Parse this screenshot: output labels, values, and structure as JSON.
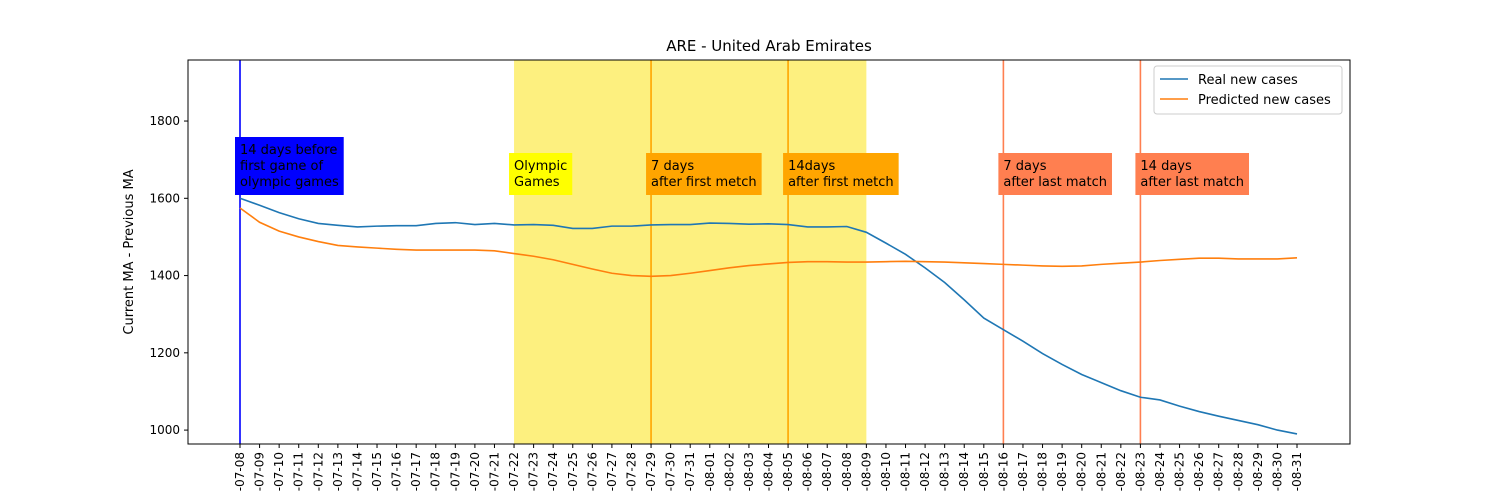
{
  "chart_data": {
    "type": "line",
    "title": "ARE - United Arab Emirates",
    "ylabel": "Current MA - Previous MA",
    "categories": [
      "-07-08",
      "-07-09",
      "-07-10",
      "-07-11",
      "-07-12",
      "-07-13",
      "-07-14",
      "-07-15",
      "-07-16",
      "-07-17",
      "-07-18",
      "-07-19",
      "-07-20",
      "-07-21",
      "-07-22",
      "-07-23",
      "-07-24",
      "-07-25",
      "-07-26",
      "-07-27",
      "-07-28",
      "-07-29",
      "-07-30",
      "-07-31",
      "-08-01",
      "-08-02",
      "-08-03",
      "-08-04",
      "-08-05",
      "-08-06",
      "-08-07",
      "-08-08",
      "-08-09",
      "-08-10",
      "-08-11",
      "-08-12",
      "-08-13",
      "-08-14",
      "-08-15",
      "-08-16",
      "-08-17",
      "-08-18",
      "-08-19",
      "-08-20",
      "-08-21",
      "-08-22",
      "-08-23",
      "-08-24",
      "-08-25",
      "-08-26",
      "-08-27",
      "-08-28",
      "-08-29",
      "-08-30",
      "-08-31"
    ],
    "series": [
      {
        "name": "Real new cases",
        "color": "#1f77b4",
        "values": [
          1600,
          1582,
          1563,
          1547,
          1535,
          1530,
          1526,
          1528,
          1529,
          1529,
          1535,
          1537,
          1532,
          1535,
          1531,
          1532,
          1530,
          1522,
          1522,
          1528,
          1528,
          1531,
          1532,
          1532,
          1536,
          1535,
          1533,
          1534,
          1532,
          1526,
          1526,
          1527,
          1512,
          1484,
          1455,
          1420,
          1382,
          1337,
          1290,
          1260,
          1230,
          1198,
          1170,
          1144,
          1123,
          1102,
          1085,
          1078,
          1062,
          1048,
          1036,
          1025,
          1014,
          1000,
          990
        ]
      },
      {
        "name": "Predicted new cases",
        "color": "#ff7f0e",
        "values": [
          1575,
          1538,
          1515,
          1500,
          1488,
          1478,
          1474,
          1471,
          1468,
          1466,
          1466,
          1466,
          1466,
          1464,
          1457,
          1450,
          1441,
          1429,
          1417,
          1406,
          1400,
          1398,
          1400,
          1406,
          1413,
          1420,
          1426,
          1430,
          1434,
          1436,
          1436,
          1435,
          1435,
          1436,
          1437,
          1436,
          1435,
          1433,
          1431,
          1429,
          1427,
          1425,
          1424,
          1425,
          1429,
          1432,
          1435,
          1439,
          1442,
          1445,
          1445,
          1443,
          1443,
          1443,
          1446
        ]
      }
    ],
    "ylim": [
      964,
      1958
    ],
    "yticks": [
      1000,
      1200,
      1400,
      1600,
      1800
    ],
    "legend": "upper right",
    "span": {
      "from": "-07-22",
      "to": "-08-09",
      "color": "#fdf07f"
    },
    "vlines": [
      {
        "x": "-07-08",
        "color": "#0000ff"
      },
      {
        "x": "-07-29",
        "color": "#ffa500"
      },
      {
        "x": "-08-05",
        "color": "#ffa500"
      },
      {
        "x": "-08-16",
        "color": "#ff7f50"
      },
      {
        "x": "-08-23",
        "color": "#ff7f50"
      }
    ],
    "annotations": [
      {
        "x": "-07-08",
        "lines": [
          "14 days before",
          "first game of",
          "olympic games"
        ],
        "bg": "#0000ff",
        "fg": "#ffffff"
      },
      {
        "x": "-07-22",
        "lines": [
          "Olympic",
          "Games"
        ],
        "bg": "#ffff00",
        "fg": "#000000"
      },
      {
        "x": "-07-29",
        "lines": [
          "7 days",
          "after first metch"
        ],
        "bg": "#ffa500",
        "fg": "#000000"
      },
      {
        "x": "-08-05",
        "lines": [
          "14days",
          "after first metch"
        ],
        "bg": "#ffa500",
        "fg": "#000000"
      },
      {
        "x": "-08-16",
        "lines": [
          "7 days",
          "after last match"
        ],
        "bg": "#ff7f50",
        "fg": "#000000"
      },
      {
        "x": "-08-23",
        "lines": [
          "14 days",
          "after last match"
        ],
        "bg": "#ff7f50",
        "fg": "#000000"
      }
    ]
  }
}
